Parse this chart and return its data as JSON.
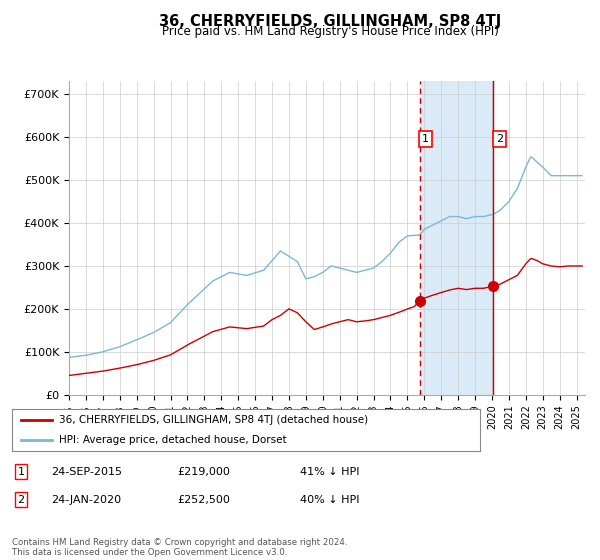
{
  "title": "36, CHERRYFIELDS, GILLINGHAM, SP8 4TJ",
  "subtitle": "Price paid vs. HM Land Registry's House Price Index (HPI)",
  "xlim_start": 1995.0,
  "xlim_end": 2025.5,
  "ylim": [
    0,
    730000
  ],
  "yticks": [
    0,
    100000,
    200000,
    300000,
    400000,
    500000,
    600000,
    700000
  ],
  "ytick_labels": [
    "£0",
    "£100K",
    "£200K",
    "£300K",
    "£400K",
    "£500K",
    "£600K",
    "£700K"
  ],
  "purchase1_date": 2015.73,
  "purchase1_price": 219000,
  "purchase2_date": 2020.07,
  "purchase2_price": 252500,
  "shade_start": 2015.73,
  "shade_end": 2020.07,
  "hpi_color": "#7ab8d9",
  "hpi_fill_color": "#dbeaf7",
  "price_color": "#cc0000",
  "point_color": "#cc0000",
  "vline_color": "#cc0000",
  "grid_color": "#cccccc",
  "background_color": "#ffffff",
  "legend_label_price": "36, CHERRYFIELDS, GILLINGHAM, SP8 4TJ (detached house)",
  "legend_label_hpi": "HPI: Average price, detached house, Dorset",
  "footnote": "Contains HM Land Registry data © Crown copyright and database right 2024.\nThis data is licensed under the Open Government Licence v3.0.",
  "table_rows": [
    {
      "num": "1",
      "date": "24-SEP-2015",
      "price": "£219,000",
      "note": "41% ↓ HPI"
    },
    {
      "num": "2",
      "date": "24-JAN-2020",
      "price": "£252,500",
      "note": "40% ↓ HPI"
    }
  ],
  "hpi_anchors": [
    [
      1995.0,
      87000
    ],
    [
      1996.0,
      92000
    ],
    [
      1997.0,
      100000
    ],
    [
      1998.0,
      112000
    ],
    [
      1999.0,
      128000
    ],
    [
      2000.0,
      145000
    ],
    [
      2001.0,
      168000
    ],
    [
      2002.0,
      210000
    ],
    [
      2003.5,
      265000
    ],
    [
      2004.5,
      285000
    ],
    [
      2005.5,
      278000
    ],
    [
      2006.5,
      290000
    ],
    [
      2007.5,
      335000
    ],
    [
      2008.5,
      310000
    ],
    [
      2009.0,
      270000
    ],
    [
      2009.5,
      275000
    ],
    [
      2010.0,
      285000
    ],
    [
      2010.5,
      300000
    ],
    [
      2011.0,
      295000
    ],
    [
      2011.5,
      290000
    ],
    [
      2012.0,
      285000
    ],
    [
      2012.5,
      290000
    ],
    [
      2013.0,
      295000
    ],
    [
      2013.5,
      310000
    ],
    [
      2014.0,
      330000
    ],
    [
      2014.5,
      355000
    ],
    [
      2015.0,
      370000
    ],
    [
      2015.73,
      372000
    ],
    [
      2016.0,
      385000
    ],
    [
      2016.5,
      395000
    ],
    [
      2017.0,
      405000
    ],
    [
      2017.5,
      415000
    ],
    [
      2018.0,
      415000
    ],
    [
      2018.5,
      410000
    ],
    [
      2019.0,
      415000
    ],
    [
      2019.5,
      415000
    ],
    [
      2020.07,
      420000
    ],
    [
      2020.5,
      430000
    ],
    [
      2021.0,
      450000
    ],
    [
      2021.5,
      480000
    ],
    [
      2022.0,
      530000
    ],
    [
      2022.3,
      555000
    ],
    [
      2022.7,
      540000
    ],
    [
      2023.0,
      530000
    ],
    [
      2023.5,
      510000
    ],
    [
      2024.0,
      510000
    ],
    [
      2024.5,
      510000
    ],
    [
      2025.3,
      510000
    ]
  ],
  "red_anchors": [
    [
      1995.0,
      45000
    ],
    [
      1996.0,
      50000
    ],
    [
      1997.0,
      55000
    ],
    [
      1998.0,
      62000
    ],
    [
      1999.0,
      70000
    ],
    [
      2000.0,
      80000
    ],
    [
      2001.0,
      93000
    ],
    [
      2002.0,
      116000
    ],
    [
      2003.5,
      147000
    ],
    [
      2004.5,
      158000
    ],
    [
      2005.5,
      154000
    ],
    [
      2006.5,
      160000
    ],
    [
      2007.0,
      175000
    ],
    [
      2007.5,
      185000
    ],
    [
      2008.0,
      200000
    ],
    [
      2008.5,
      191000
    ],
    [
      2009.0,
      170000
    ],
    [
      2009.5,
      152000
    ],
    [
      2010.0,
      158000
    ],
    [
      2010.5,
      165000
    ],
    [
      2011.0,
      170000
    ],
    [
      2011.5,
      175000
    ],
    [
      2012.0,
      170000
    ],
    [
      2012.5,
      172000
    ],
    [
      2013.0,
      175000
    ],
    [
      2013.5,
      180000
    ],
    [
      2014.0,
      185000
    ],
    [
      2014.5,
      192000
    ],
    [
      2015.0,
      200000
    ],
    [
      2015.4,
      205000
    ],
    [
      2015.73,
      219000
    ],
    [
      2016.0,
      225000
    ],
    [
      2016.5,
      232000
    ],
    [
      2017.0,
      238000
    ],
    [
      2017.5,
      244000
    ],
    [
      2018.0,
      248000
    ],
    [
      2018.5,
      245000
    ],
    [
      2019.0,
      248000
    ],
    [
      2019.5,
      248000
    ],
    [
      2020.07,
      252500
    ],
    [
      2020.5,
      258000
    ],
    [
      2021.0,
      268000
    ],
    [
      2021.5,
      278000
    ],
    [
      2022.0,
      305000
    ],
    [
      2022.3,
      318000
    ],
    [
      2022.7,
      312000
    ],
    [
      2023.0,
      305000
    ],
    [
      2023.5,
      300000
    ],
    [
      2024.0,
      298000
    ],
    [
      2024.5,
      300000
    ],
    [
      2025.3,
      300000
    ]
  ]
}
